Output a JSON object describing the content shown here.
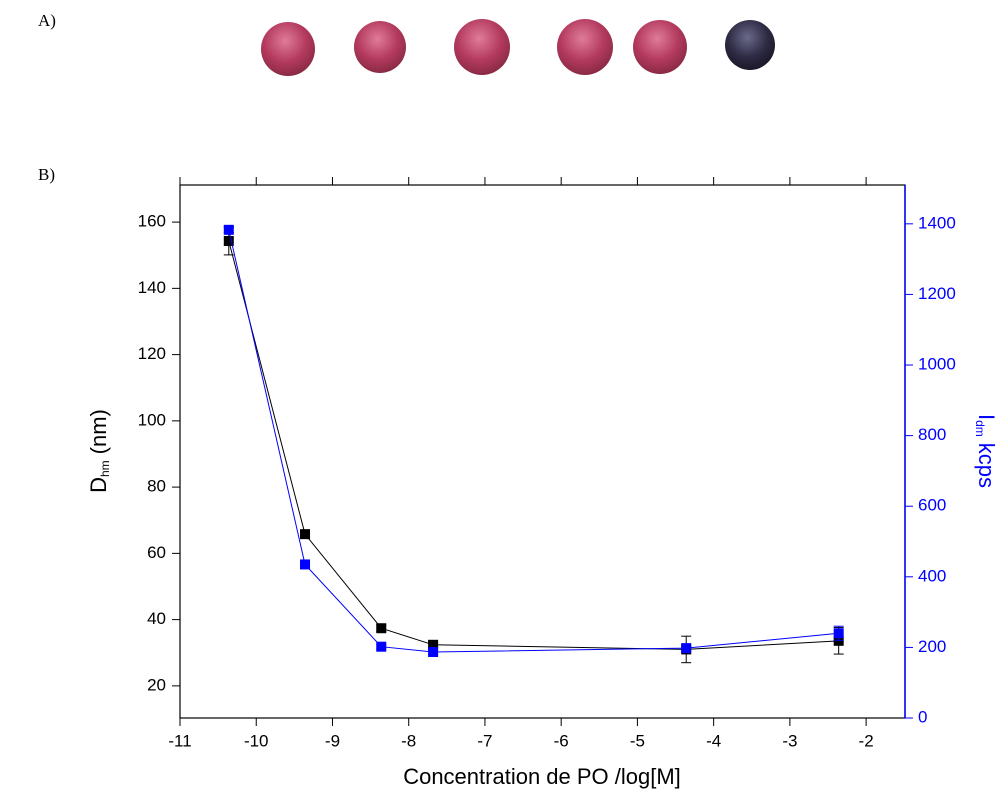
{
  "panel_a_label": "A)",
  "chart_data": {
    "type": "line",
    "panel_label": "B)",
    "x_label": "Concentration de PO /log[M]",
    "y_label": {
      "main": "D",
      "sub": "hm",
      "unit": "(nm)"
    },
    "y2_label": {
      "main": "I",
      "sub": "dm",
      "unit": "kcps"
    },
    "x": [
      -10.36,
      -9.36,
      -8.36,
      -7.68,
      -4.36,
      -2.36
    ],
    "series": [
      {
        "color": "#000000",
        "values": [
          154.3,
          65.8,
          37.4,
          32.4,
          31.0,
          33.6
        ],
        "errors": [
          4.2,
          0.8,
          1.0,
          0.8,
          4.0,
          4.0
        ]
      },
      {
        "color": "#0000ff",
        "axis": "y2",
        "values": [
          1383,
          435,
          202,
          187,
          198,
          240
        ],
        "errors": [
          8,
          6,
          6,
          5,
          8,
          20
        ]
      }
    ],
    "xlim": [
      -11,
      -1.49
    ],
    "xticks": [
      -11,
      -10,
      -9,
      -8,
      -7,
      -6,
      -5,
      -4,
      -3,
      -2
    ],
    "ylim": [
      10.3,
      171.2
    ],
    "yticks": [
      20,
      40,
      60,
      80,
      100,
      120,
      140,
      160
    ],
    "y2lim": [
      0,
      1510
    ],
    "y2ticks": [
      0,
      200,
      400,
      600,
      800,
      1000,
      1200,
      1400
    ]
  }
}
